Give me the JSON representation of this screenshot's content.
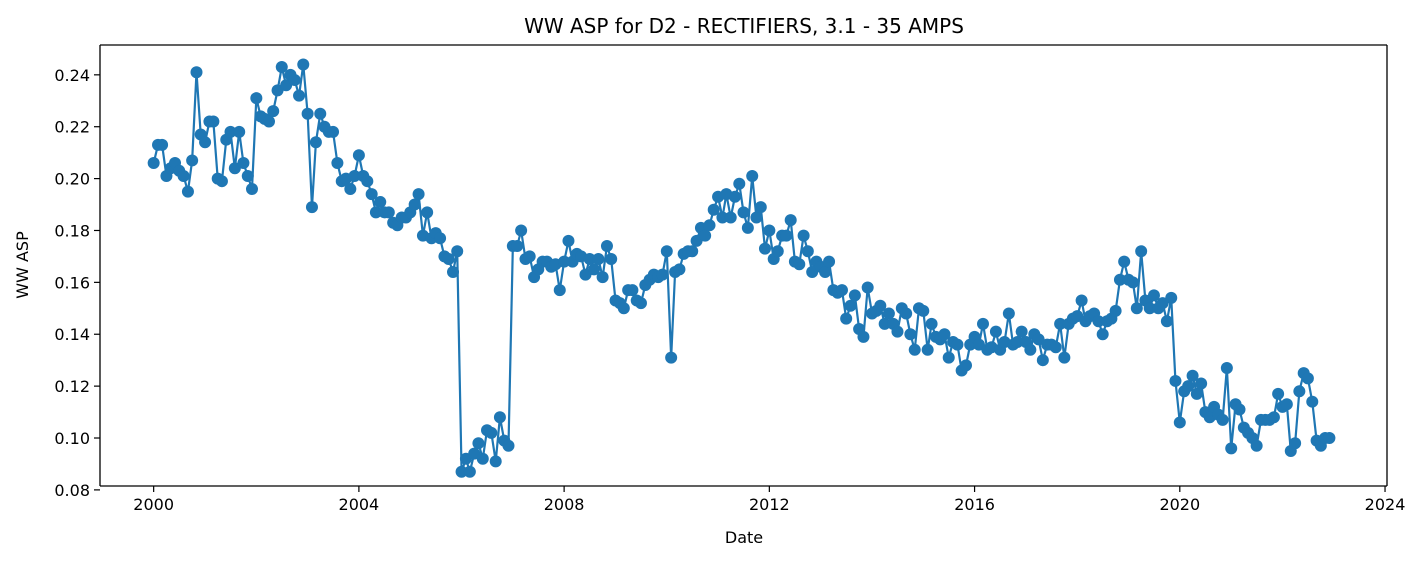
{
  "chart_data": {
    "type": "line",
    "title": "WW ASP for D2 - RECTIFIERS, 3.1 - 35 AMPS",
    "xlabel": "Date",
    "ylabel": "WW ASP",
    "xlim": [
      "1998-12-15",
      "2024-01-15"
    ],
    "ylim": [
      0.0815,
      0.2515
    ],
    "x_ticks": [
      "2000",
      "2004",
      "2008",
      "2012",
      "2016",
      "2020",
      "2024"
    ],
    "y_ticks": [
      "0.08",
      "0.10",
      "0.12",
      "0.14",
      "0.16",
      "0.18",
      "0.20",
      "0.22",
      "0.24"
    ],
    "grid": false,
    "legend": "none",
    "marker": "circle",
    "line_color": "#1f77b4",
    "series": [
      {
        "x": [
          "2000-01",
          "2000-02",
          "2000-03",
          "2000-04",
          "2000-05",
          "2000-06",
          "2000-07",
          "2000-08",
          "2000-09",
          "2000-10",
          "2000-11",
          "2000-12",
          "2001-01",
          "2001-02",
          "2001-03",
          "2001-04",
          "2001-05",
          "2001-06",
          "2001-07",
          "2001-08",
          "2001-09",
          "2001-10",
          "2001-11",
          "2001-12",
          "2002-01",
          "2002-02",
          "2002-03",
          "2002-04",
          "2002-05",
          "2002-06",
          "2002-07",
          "2002-08",
          "2002-09",
          "2002-10",
          "2002-11",
          "2002-12",
          "2003-01",
          "2003-02",
          "2003-03",
          "2003-04",
          "2003-05",
          "2003-06",
          "2003-07",
          "2003-08",
          "2003-09",
          "2003-10",
          "2003-11",
          "2003-12",
          "2004-01",
          "2004-02",
          "2004-03",
          "2004-04",
          "2004-05",
          "2004-06",
          "2004-07",
          "2004-08",
          "2004-09",
          "2004-10",
          "2004-11",
          "2004-12",
          "2005-01",
          "2005-02",
          "2005-03",
          "2005-04",
          "2005-05",
          "2005-06",
          "2005-07",
          "2005-08",
          "2005-09",
          "2005-10",
          "2005-11",
          "2005-12",
          "2006-01",
          "2006-02",
          "2006-03",
          "2006-04",
          "2006-05",
          "2006-06",
          "2006-07",
          "2006-08",
          "2006-09",
          "2006-10",
          "2006-11",
          "2006-12",
          "2007-01",
          "2007-02",
          "2007-03",
          "2007-04",
          "2007-05",
          "2007-06",
          "2007-07",
          "2007-08",
          "2007-09",
          "2007-10",
          "2007-11",
          "2007-12",
          "2008-01",
          "2008-02",
          "2008-03",
          "2008-04",
          "2008-05",
          "2008-06",
          "2008-07",
          "2008-08",
          "2008-09",
          "2008-10",
          "2008-11",
          "2008-12",
          "2009-01",
          "2009-02",
          "2009-03",
          "2009-04",
          "2009-05",
          "2009-06",
          "2009-07",
          "2009-08",
          "2009-09",
          "2009-10",
          "2009-11",
          "2009-12",
          "2010-01",
          "2010-02",
          "2010-03",
          "2010-04",
          "2010-05",
          "2010-06",
          "2010-07",
          "2010-08",
          "2010-09",
          "2010-10",
          "2010-11",
          "2010-12",
          "2011-01",
          "2011-02",
          "2011-03",
          "2011-04",
          "2011-05",
          "2011-06",
          "2011-07",
          "2011-08",
          "2011-09",
          "2011-10",
          "2011-11",
          "2011-12",
          "2012-01",
          "2012-02",
          "2012-03",
          "2012-04",
          "2012-05",
          "2012-06",
          "2012-07",
          "2012-08",
          "2012-09",
          "2012-10",
          "2012-11",
          "2012-12",
          "2013-01",
          "2013-02",
          "2013-03",
          "2013-04",
          "2013-05",
          "2013-06",
          "2013-07",
          "2013-08",
          "2013-09",
          "2013-10",
          "2013-11",
          "2013-12",
          "2014-01",
          "2014-02",
          "2014-03",
          "2014-04",
          "2014-05",
          "2014-06",
          "2014-07",
          "2014-08",
          "2014-09",
          "2014-10",
          "2014-11",
          "2014-12",
          "2015-01",
          "2015-02",
          "2015-03",
          "2015-04",
          "2015-05",
          "2015-06",
          "2015-07",
          "2015-08",
          "2015-09",
          "2015-10",
          "2015-11",
          "2015-12",
          "2016-01",
          "2016-02",
          "2016-03",
          "2016-04",
          "2016-05",
          "2016-06",
          "2016-07",
          "2016-08",
          "2016-09",
          "2016-10",
          "2016-11",
          "2016-12",
          "2017-01",
          "2017-02",
          "2017-03",
          "2017-04",
          "2017-05",
          "2017-06",
          "2017-07",
          "2017-08",
          "2017-09",
          "2017-10",
          "2017-11",
          "2017-12",
          "2018-01",
          "2018-02",
          "2018-03",
          "2018-04",
          "2018-05",
          "2018-06",
          "2018-07",
          "2018-08",
          "2018-09",
          "2018-10",
          "2018-11",
          "2018-12",
          "2019-01",
          "2019-02",
          "2019-03",
          "2019-04",
          "2019-05",
          "2019-06",
          "2019-07",
          "2019-08",
          "2019-09",
          "2019-10",
          "2019-11",
          "2019-12",
          "2020-01",
          "2020-02",
          "2020-03",
          "2020-04",
          "2020-05",
          "2020-06",
          "2020-07",
          "2020-08",
          "2020-09",
          "2020-10",
          "2020-11",
          "2020-12",
          "2021-01",
          "2021-02",
          "2021-03",
          "2021-04",
          "2021-05",
          "2021-06",
          "2021-07",
          "2021-08",
          "2021-09",
          "2021-10",
          "2021-11",
          "2021-12",
          "2022-01",
          "2022-02",
          "2022-03",
          "2022-04",
          "2022-05",
          "2022-06",
          "2022-07",
          "2022-08",
          "2022-09",
          "2022-10",
          "2022-11",
          "2022-12"
        ],
        "y": [
          0.206,
          0.213,
          0.213,
          0.201,
          0.204,
          0.206,
          0.203,
          0.201,
          0.195,
          0.207,
          0.241,
          0.217,
          0.214,
          0.222,
          0.222,
          0.2,
          0.199,
          0.215,
          0.218,
          0.204,
          0.218,
          0.206,
          0.201,
          0.196,
          0.231,
          0.224,
          0.223,
          0.222,
          0.226,
          0.234,
          0.243,
          0.236,
          0.24,
          0.238,
          0.232,
          0.244,
          0.225,
          0.189,
          0.214,
          0.225,
          0.22,
          0.218,
          0.218,
          0.206,
          0.199,
          0.2,
          0.196,
          0.201,
          0.209,
          0.201,
          0.199,
          0.194,
          0.187,
          0.191,
          0.187,
          0.187,
          0.183,
          0.182,
          0.185,
          0.185,
          0.187,
          0.19,
          0.194,
          0.178,
          0.187,
          0.177,
          0.179,
          0.177,
          0.17,
          0.169,
          0.164,
          0.172,
          0.087,
          0.092,
          0.087,
          0.094,
          0.098,
          0.092,
          0.103,
          0.102,
          0.091,
          0.108,
          0.099,
          0.097,
          0.174,
          0.174,
          0.18,
          0.169,
          0.17,
          0.162,
          0.165,
          0.168,
          0.168,
          0.166,
          0.167,
          0.157,
          0.168,
          0.176,
          0.168,
          0.171,
          0.17,
          0.163,
          0.169,
          0.165,
          0.169,
          0.162,
          0.174,
          0.169,
          0.153,
          0.152,
          0.15,
          0.157,
          0.157,
          0.153,
          0.152,
          0.159,
          0.161,
          0.163,
          0.162,
          0.163,
          0.172,
          0.131,
          0.164,
          0.165,
          0.171,
          0.172,
          0.172,
          0.176,
          0.181,
          0.178,
          0.182,
          0.188,
          0.193,
          0.185,
          0.194,
          0.185,
          0.193,
          0.198,
          0.187,
          0.181,
          0.201,
          0.185,
          0.189,
          0.173,
          0.18,
          0.169,
          0.172,
          0.178,
          0.178,
          0.184,
          0.168,
          0.167,
          0.178,
          0.172,
          0.164,
          0.168,
          0.166,
          0.164,
          0.168,
          0.157,
          0.156,
          0.157,
          0.146,
          0.151,
          0.155,
          0.142,
          0.139,
          0.158,
          0.148,
          0.149,
          0.151,
          0.144,
          0.148,
          0.144,
          0.141,
          0.15,
          0.148,
          0.14,
          0.134,
          0.15,
          0.149,
          0.134,
          0.144,
          0.139,
          0.138,
          0.14,
          0.131,
          0.137,
          0.136,
          0.126,
          0.128,
          0.136,
          0.139,
          0.136,
          0.144,
          0.134,
          0.135,
          0.141,
          0.134,
          0.137,
          0.148,
          0.136,
          0.137,
          0.141,
          0.137,
          0.134,
          0.14,
          0.138,
          0.13,
          0.136,
          0.136,
          0.135,
          0.144,
          0.131,
          0.144,
          0.146,
          0.147,
          0.153,
          0.145,
          0.147,
          0.148,
          0.145,
          0.14,
          0.145,
          0.146,
          0.149,
          0.161,
          0.168,
          0.161,
          0.16,
          0.15,
          0.172,
          0.153,
          0.15,
          0.155,
          0.15,
          0.152,
          0.145,
          0.154,
          0.122,
          0.106,
          0.118,
          0.12,
          0.124,
          0.117,
          0.121,
          0.11,
          0.108,
          0.112,
          0.109,
          0.107,
          0.127,
          0.096,
          0.113,
          0.111,
          0.104,
          0.102,
          0.1,
          0.097,
          0.107,
          0.107,
          0.107,
          0.108,
          0.117,
          0.112,
          0.113,
          0.095,
          0.098,
          0.118,
          0.125,
          0.123,
          0.114,
          0.099,
          0.097,
          0.1,
          0.1
        ]
      }
    ]
  }
}
